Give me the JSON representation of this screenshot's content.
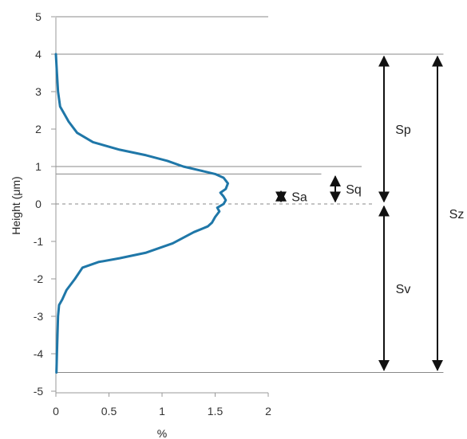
{
  "chart_data": {
    "type": "line",
    "title": "",
    "xlabel": "%",
    "ylabel": "Height (μm)",
    "xlim": [
      0,
      2
    ],
    "ylim": [
      -5,
      5
    ],
    "x_ticks": [
      "0",
      "0.5",
      "1",
      "1.5",
      "2"
    ],
    "y_ticks": [
      "-5",
      "-4",
      "-3",
      "-2",
      "-1",
      "0",
      "1",
      "2",
      "3",
      "4",
      "5"
    ],
    "x_tick_values": [
      0,
      0.5,
      1,
      1.5,
      2
    ],
    "y_tick_values": [
      -5,
      -4,
      -3,
      -2,
      -1,
      0,
      1,
      2,
      3,
      4,
      5
    ],
    "series": [
      {
        "color": "#1f77a8",
        "points": [
          [
            0.0,
            4.0
          ],
          [
            0.01,
            3.5
          ],
          [
            0.02,
            3.0
          ],
          [
            0.04,
            2.6
          ],
          [
            0.07,
            2.45
          ],
          [
            0.12,
            2.2
          ],
          [
            0.2,
            1.9
          ],
          [
            0.35,
            1.65
          ],
          [
            0.6,
            1.45
          ],
          [
            0.85,
            1.3
          ],
          [
            1.05,
            1.15
          ],
          [
            1.2,
            1.0
          ],
          [
            1.35,
            0.9
          ],
          [
            1.5,
            0.8
          ],
          [
            1.58,
            0.7
          ],
          [
            1.62,
            0.55
          ],
          [
            1.6,
            0.4
          ],
          [
            1.55,
            0.3
          ],
          [
            1.58,
            0.2
          ],
          [
            1.6,
            0.1
          ],
          [
            1.58,
            0.0
          ],
          [
            1.52,
            -0.1
          ],
          [
            1.54,
            -0.2
          ],
          [
            1.5,
            -0.35
          ],
          [
            1.47,
            -0.5
          ],
          [
            1.43,
            -0.6
          ],
          [
            1.3,
            -0.75
          ],
          [
            1.1,
            -1.05
          ],
          [
            0.85,
            -1.3
          ],
          [
            0.6,
            -1.45
          ],
          [
            0.4,
            -1.55
          ],
          [
            0.25,
            -1.7
          ],
          [
            0.18,
            -2.0
          ],
          [
            0.1,
            -2.3
          ],
          [
            0.06,
            -2.55
          ],
          [
            0.03,
            -2.7
          ],
          [
            0.02,
            -3.0
          ],
          [
            0.015,
            -3.5
          ],
          [
            0.01,
            -4.0
          ],
          [
            0.005,
            -4.5
          ]
        ]
      }
    ],
    "reference_lines": [
      {
        "y": 5,
        "x_from": 0,
        "x_to": 2.0,
        "style": "solid",
        "color": "#888888"
      },
      {
        "y": 4,
        "x_from": 0,
        "x_to": 3.65,
        "style": "solid",
        "color": "#888888"
      },
      {
        "y": 1,
        "x_from": 0,
        "x_to": 2.88,
        "style": "solid",
        "color": "#888888"
      },
      {
        "y": 0.8,
        "x_from": 0,
        "x_to": 2.5,
        "style": "solid",
        "color": "#888888"
      },
      {
        "y": 0,
        "x_from": 0,
        "x_to": 3.0,
        "style": "dashed",
        "color": "#888888"
      },
      {
        "y": -4.5,
        "x_from": 0,
        "x_to": 3.65,
        "style": "solid",
        "color": "#888888"
      }
    ],
    "annotations": [
      {
        "label": "Sa",
        "from": 0.0,
        "to": 0.4
      },
      {
        "label": "Sq",
        "from": 0.0,
        "to": 0.8
      },
      {
        "label": "Sp",
        "from": 0.0,
        "to": 4.0
      },
      {
        "label": "Sv",
        "from": -4.5,
        "to": 0.0
      },
      {
        "label": "Sz",
        "from": -4.5,
        "to": 4.0
      }
    ]
  }
}
